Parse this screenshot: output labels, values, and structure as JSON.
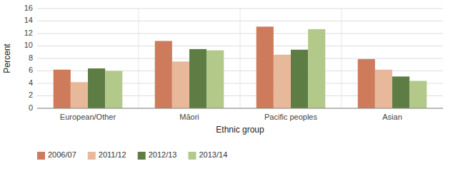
{
  "chart_data": {
    "type": "bar",
    "categories": [
      "European/Other",
      "Māori",
      "Pacific peoples",
      "Asian"
    ],
    "series": [
      {
        "name": "2006/07",
        "color": "#cd7b5b",
        "values": [
          6.2,
          10.8,
          13.1,
          7.9
        ]
      },
      {
        "name": "2011/12",
        "color": "#e8b89a",
        "values": [
          4.2,
          7.5,
          8.6,
          6.2
        ]
      },
      {
        "name": "2012/13",
        "color": "#5e7d45",
        "values": [
          6.4,
          9.5,
          9.4,
          5.1
        ]
      },
      {
        "name": "2013/14",
        "color": "#b2c98a",
        "values": [
          6.0,
          9.3,
          12.7,
          4.4
        ]
      }
    ],
    "xlabel": "Ethnic group",
    "ylabel": "Percent",
    "ylim": [
      0,
      16
    ],
    "yticks": [
      0,
      2,
      4,
      6,
      8,
      10,
      12,
      14,
      16
    ],
    "grid": true,
    "legend": "lower left"
  }
}
